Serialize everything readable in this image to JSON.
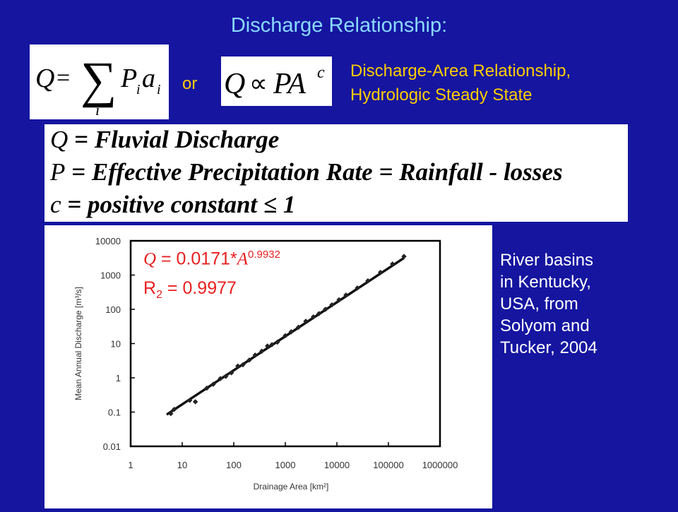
{
  "title": "Discharge Relationship:",
  "equations": {
    "sum_form": {
      "lhs": "Q",
      "eq": "=",
      "sum_symbol": "∑",
      "term_p": "P",
      "term_i1": "i",
      "term_a": "a",
      "term_i2": "i",
      "sum_index": "i"
    },
    "or_word": "or",
    "prop_form": {
      "lhs": "Q",
      "prop": "∝",
      "rhs": "PA",
      "exponent": "c"
    }
  },
  "relationship_text": [
    "Discharge-Area Relationship,",
    "Hydrologic Steady State"
  ],
  "definitions": [
    {
      "symbol": "Q",
      "text": "= Fluvial Discharge"
    },
    {
      "symbol": "P",
      "text": "= Effective Precipitation Rate = Rainfall - losses"
    },
    {
      "symbol": "c",
      "text": "= positive constant ≤ 1"
    }
  ],
  "fit": {
    "q_symbol": "Q",
    "q_eq": " = 0.0171*",
    "a_symbol": "A",
    "exponent": "0.9932",
    "r2_r": "R",
    "r2_sub": "2",
    "r2_value": " = 0.9977"
  },
  "source_text": [
    "River basins",
    "in Kentucky,",
    "USA, from",
    "Solyom and",
    "Tucker, 2004"
  ],
  "chart_data": {
    "type": "scatter",
    "xlabel": "Drainage Area [km²]",
    "ylabel": "Mean Annual Discharge [m³/s]",
    "x_scale": "log",
    "y_scale": "log",
    "xlim": [
      1,
      1000000
    ],
    "ylim": [
      0.01,
      10000
    ],
    "x_ticks": [
      "1",
      "10",
      "100",
      "1000",
      "10000",
      "100000",
      "1000000"
    ],
    "y_ticks": [
      "0.01",
      "0.1",
      "1",
      "10",
      "100",
      "1000",
      "10000"
    ],
    "grid": false,
    "fit_line": {
      "coefficient": 0.0171,
      "exponent": 0.9932,
      "x_range": [
        5,
        200000
      ]
    },
    "points": [
      {
        "x": 6,
        "y": 0.09
      },
      {
        "x": 7,
        "y": 0.12
      },
      {
        "x": 14,
        "y": 0.22
      },
      {
        "x": 18,
        "y": 0.2
      },
      {
        "x": 30,
        "y": 0.5
      },
      {
        "x": 40,
        "y": 0.65
      },
      {
        "x": 55,
        "y": 0.95
      },
      {
        "x": 70,
        "y": 1.1
      },
      {
        "x": 90,
        "y": 1.4
      },
      {
        "x": 120,
        "y": 2.2
      },
      {
        "x": 150,
        "y": 2.4
      },
      {
        "x": 200,
        "y": 3.3
      },
      {
        "x": 260,
        "y": 4.6
      },
      {
        "x": 350,
        "y": 6
      },
      {
        "x": 450,
        "y": 8.5
      },
      {
        "x": 550,
        "y": 9.3
      },
      {
        "x": 700,
        "y": 11
      },
      {
        "x": 1000,
        "y": 17
      },
      {
        "x": 1300,
        "y": 22
      },
      {
        "x": 1800,
        "y": 30
      },
      {
        "x": 2500,
        "y": 45
      },
      {
        "x": 3500,
        "y": 60
      },
      {
        "x": 4500,
        "y": 75
      },
      {
        "x": 6000,
        "y": 100
      },
      {
        "x": 8000,
        "y": 135
      },
      {
        "x": 11000,
        "y": 190
      },
      {
        "x": 15000,
        "y": 260
      },
      {
        "x": 25000,
        "y": 420
      },
      {
        "x": 40000,
        "y": 680
      },
      {
        "x": 70000,
        "y": 1200
      },
      {
        "x": 120000,
        "y": 2100
      },
      {
        "x": 200000,
        "y": 3500
      }
    ]
  }
}
